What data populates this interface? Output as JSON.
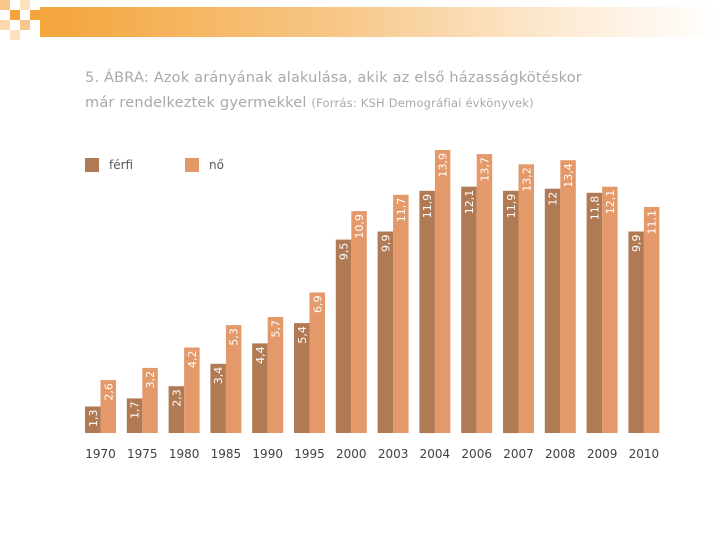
{
  "header": {
    "title_line1": "5. ÁBRA: Azok arányának alakulása, akik az első házasságkötéskor",
    "title_line2": "már rendelkeztek gyermekkel",
    "source": "(Forrás: KSH Demográfiai évkönyvek)"
  },
  "colors": {
    "accent": "#f4a43a",
    "ferfi": "#b07a54",
    "no": "#e3996a",
    "label_text": "#ffffff",
    "axis_text": "#414042"
  },
  "chart_data": {
    "type": "bar",
    "title": "5. ÁBRA: Azok arányának alakulása, akik az első házasságkötéskor már rendelkeztek gyermekkel",
    "categories": [
      "1970",
      "1975",
      "1980",
      "1985",
      "1990",
      "1995",
      "2000",
      "2003",
      "2004",
      "2006",
      "2007",
      "2008",
      "2009",
      "2010"
    ],
    "series": [
      {
        "name": "férfi",
        "values": [
          1.3,
          1.7,
          2.3,
          3.4,
          4.4,
          5.4,
          9.5,
          9.9,
          11.9,
          12.1,
          11.9,
          12,
          11.8,
          9.9
        ],
        "labels": [
          "1,3",
          "1,7",
          "2,3",
          "3,4",
          "4,4",
          "5,4",
          "9,5",
          "9,9",
          "11,9",
          "12,1",
          "11,9",
          "12",
          "11,8",
          "9,9"
        ]
      },
      {
        "name": "nő",
        "values": [
          2.6,
          3.2,
          4.2,
          5.3,
          5.7,
          6.9,
          10.9,
          11.7,
          13.9,
          13.7,
          13.2,
          13.4,
          12.1,
          11.1
        ],
        "labels": [
          "2,6",
          "3,2",
          "4,2",
          "5,3",
          "5,7",
          "6,9",
          "10,9",
          "11,7",
          "13,9",
          "13,7",
          "13,2",
          "13,4",
          "12,1",
          "11,1"
        ]
      }
    ],
    "ylim": [
      0,
      14
    ],
    "legend": "top-left",
    "grid": false,
    "data_labels": "inside-bar-rotated"
  }
}
